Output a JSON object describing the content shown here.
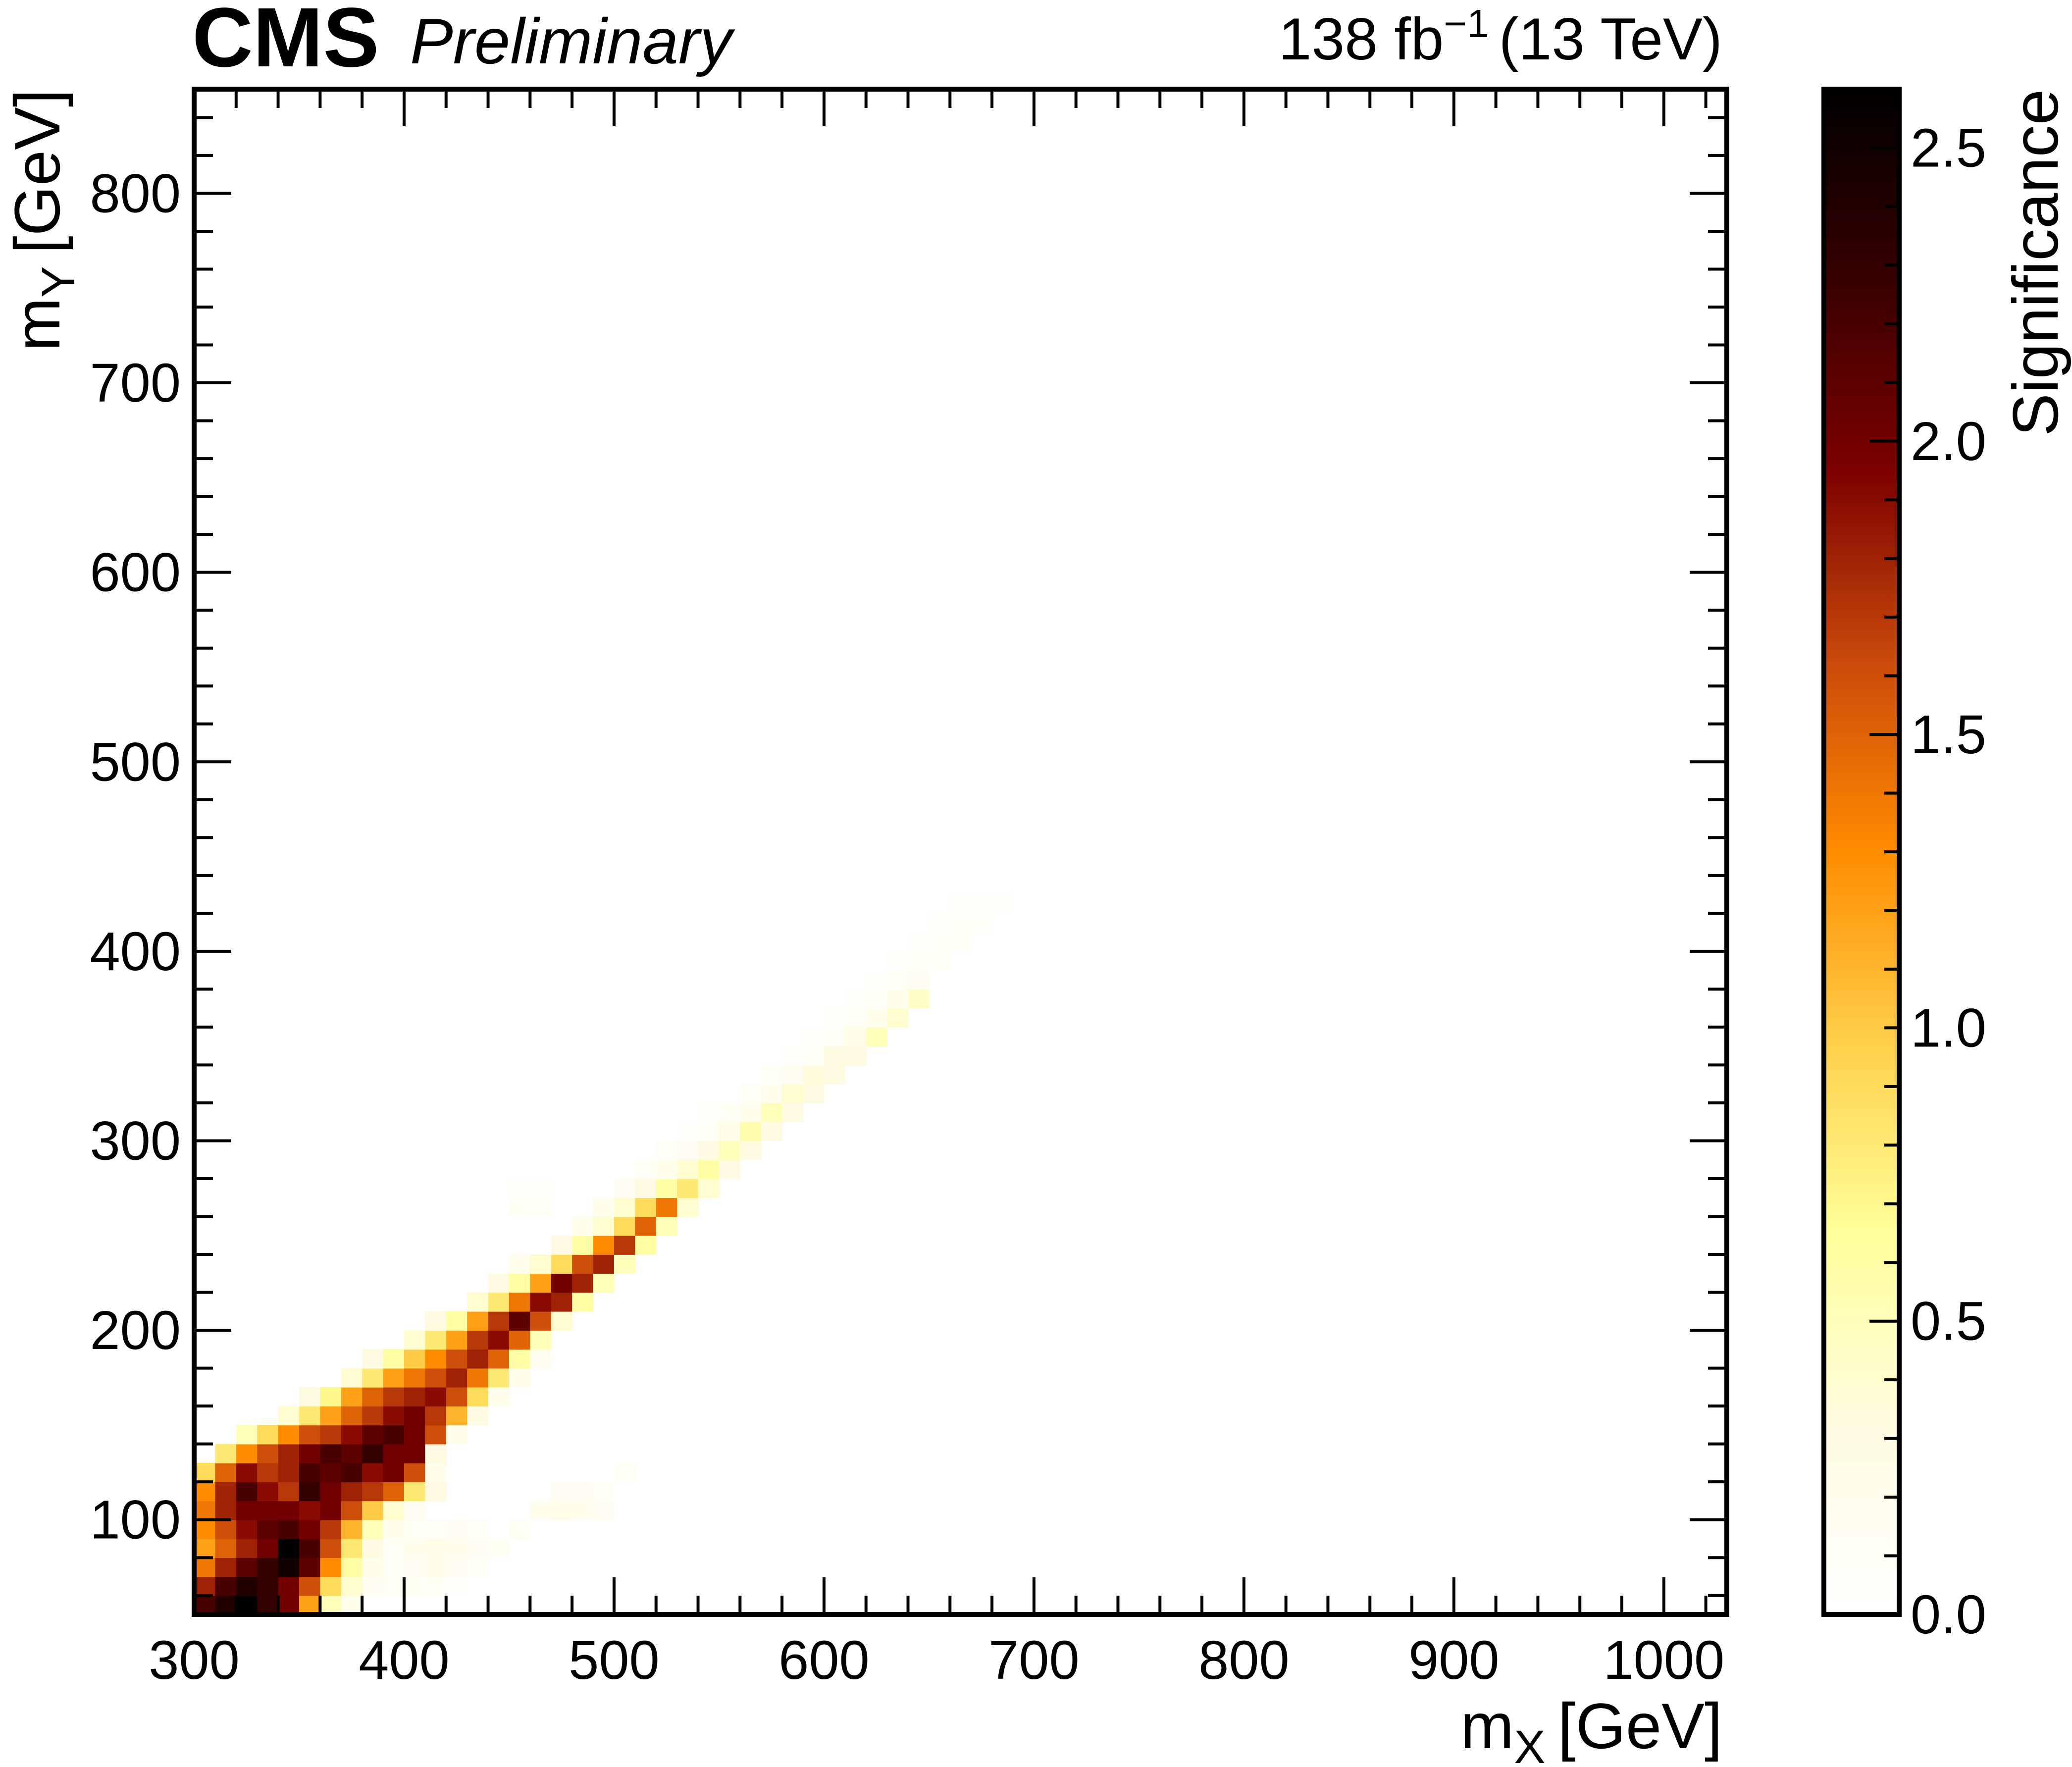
{
  "header": {
    "experiment": "CMS",
    "status": "Preliminary",
    "luminosity": "138 fb",
    "luminosity_exponent": "−1",
    "energy": "(13 TeV)"
  },
  "chart_data": {
    "type": "heatmap",
    "title": "",
    "xlabel": "m",
    "xlabel_sub": "X",
    "xlabel_unit": "[GeV]",
    "ylabel": "m",
    "ylabel_sub": "Y",
    "ylabel_unit": "[GeV]",
    "xlim": [
      300,
      1030
    ],
    "ylim": [
      50,
      855
    ],
    "x_ticks": [
      "300",
      "400",
      "500",
      "600",
      "700",
      "800",
      "900",
      "1000"
    ],
    "y_ticks": [
      "100",
      "200",
      "300",
      "400",
      "500",
      "600",
      "700",
      "800"
    ],
    "colorbar": {
      "label": "Significance",
      "range": [
        0,
        2.6
      ],
      "ticks": [
        "0.0",
        "0.5",
        "1.0",
        "1.5",
        "2.0",
        "2.5"
      ],
      "colors": [
        "#ffffff",
        "#fffbe0",
        "#ffff99",
        "#ffd04a",
        "#ff8c00",
        "#c94a0a",
        "#7d0000",
        "#380000",
        "#000000"
      ]
    },
    "cells_description_units": "each cell: [mX center GeV, mY center GeV, significance]",
    "cells": [
      [
        305,
        55,
        2.2
      ],
      [
        315,
        55,
        2.4
      ],
      [
        325,
        55,
        2.6
      ],
      [
        335,
        55,
        2.3
      ],
      [
        345,
        55,
        2.0
      ],
      [
        355,
        55,
        1.2
      ],
      [
        365,
        55,
        0.5
      ],
      [
        375,
        55,
        0.2
      ],
      [
        305,
        65,
        1.8
      ],
      [
        315,
        65,
        2.2
      ],
      [
        325,
        65,
        2.4
      ],
      [
        335,
        65,
        2.3
      ],
      [
        345,
        65,
        2.0
      ],
      [
        355,
        65,
        1.6
      ],
      [
        365,
        65,
        0.9
      ],
      [
        375,
        65,
        0.4
      ],
      [
        385,
        65,
        0.15
      ],
      [
        395,
        65,
        0.1
      ],
      [
        405,
        65,
        0.1
      ],
      [
        415,
        65,
        0.1
      ],
      [
        425,
        65,
        0.05
      ],
      [
        305,
        75,
        1.4
      ],
      [
        315,
        75,
        1.8
      ],
      [
        325,
        75,
        2.1
      ],
      [
        335,
        75,
        2.3
      ],
      [
        345,
        75,
        2.5
      ],
      [
        355,
        75,
        2.1
      ],
      [
        365,
        75,
        1.3
      ],
      [
        375,
        75,
        0.6
      ],
      [
        385,
        75,
        0.2
      ],
      [
        395,
        75,
        0.1
      ],
      [
        405,
        75,
        0.15
      ],
      [
        415,
        75,
        0.2
      ],
      [
        425,
        75,
        0.15
      ],
      [
        435,
        75,
        0.1
      ],
      [
        305,
        85,
        1.2
      ],
      [
        315,
        85,
        1.5
      ],
      [
        325,
        85,
        1.8
      ],
      [
        335,
        85,
        2.0
      ],
      [
        345,
        85,
        2.6
      ],
      [
        355,
        85,
        2.2
      ],
      [
        365,
        85,
        1.6
      ],
      [
        375,
        85,
        0.8
      ],
      [
        385,
        85,
        0.3
      ],
      [
        395,
        85,
        0.1
      ],
      [
        405,
        85,
        0.2
      ],
      [
        415,
        85,
        0.25
      ],
      [
        425,
        85,
        0.2
      ],
      [
        435,
        85,
        0.15
      ],
      [
        445,
        85,
        0.1
      ],
      [
        305,
        95,
        1.3
      ],
      [
        315,
        95,
        1.6
      ],
      [
        325,
        95,
        1.9
      ],
      [
        335,
        95,
        2.1
      ],
      [
        345,
        95,
        2.2
      ],
      [
        355,
        95,
        2.0
      ],
      [
        365,
        95,
        1.7
      ],
      [
        375,
        95,
        1.1
      ],
      [
        385,
        95,
        0.5
      ],
      [
        395,
        95,
        0.2
      ],
      [
        405,
        95,
        0.1
      ],
      [
        415,
        95,
        0.1
      ],
      [
        425,
        95,
        0.15
      ],
      [
        435,
        95,
        0.1
      ],
      [
        455,
        95,
        0.1
      ],
      [
        305,
        105,
        1.4
      ],
      [
        315,
        105,
        1.8
      ],
      [
        325,
        105,
        2.0
      ],
      [
        335,
        105,
        2.0
      ],
      [
        345,
        105,
        2.0
      ],
      [
        355,
        105,
        1.9
      ],
      [
        365,
        105,
        2.0
      ],
      [
        375,
        105,
        1.6
      ],
      [
        385,
        105,
        1.0
      ],
      [
        395,
        105,
        0.4
      ],
      [
        405,
        105,
        0.15
      ],
      [
        465,
        105,
        0.2
      ],
      [
        475,
        105,
        0.25
      ],
      [
        485,
        105,
        0.2
      ],
      [
        495,
        105,
        0.15
      ],
      [
        305,
        115,
        1.3
      ],
      [
        315,
        115,
        1.8
      ],
      [
        325,
        115,
        2.2
      ],
      [
        335,
        115,
        1.9
      ],
      [
        345,
        115,
        1.7
      ],
      [
        355,
        115,
        2.3
      ],
      [
        365,
        115,
        2.0
      ],
      [
        375,
        115,
        1.8
      ],
      [
        385,
        115,
        1.7
      ],
      [
        395,
        115,
        1.5
      ],
      [
        405,
        115,
        0.8
      ],
      [
        415,
        115,
        0.3
      ],
      [
        475,
        115,
        0.15
      ],
      [
        485,
        115,
        0.15
      ],
      [
        495,
        115,
        0.1
      ],
      [
        305,
        125,
        0.9
      ],
      [
        315,
        125,
        1.5
      ],
      [
        325,
        125,
        1.9
      ],
      [
        335,
        125,
        1.7
      ],
      [
        345,
        125,
        1.8
      ],
      [
        355,
        125,
        2.2
      ],
      [
        365,
        125,
        2.1
      ],
      [
        375,
        125,
        2.2
      ],
      [
        385,
        125,
        1.9
      ],
      [
        395,
        125,
        2.0
      ],
      [
        405,
        125,
        1.6
      ],
      [
        415,
        125,
        0.2
      ],
      [
        505,
        125,
        0.1
      ],
      [
        315,
        135,
        0.8
      ],
      [
        325,
        135,
        1.3
      ],
      [
        335,
        135,
        1.6
      ],
      [
        345,
        135,
        1.8
      ],
      [
        355,
        135,
        2.0
      ],
      [
        365,
        135,
        2.2
      ],
      [
        375,
        135,
        2.1
      ],
      [
        385,
        135,
        2.3
      ],
      [
        395,
        135,
        2.0
      ],
      [
        405,
        135,
        2.0
      ],
      [
        415,
        135,
        0.3
      ],
      [
        325,
        145,
        0.5
      ],
      [
        335,
        145,
        0.9
      ],
      [
        345,
        145,
        1.3
      ],
      [
        355,
        145,
        1.6
      ],
      [
        365,
        145,
        1.7
      ],
      [
        375,
        145,
        1.9
      ],
      [
        385,
        145,
        2.1
      ],
      [
        395,
        145,
        2.2
      ],
      [
        405,
        145,
        2.0
      ],
      [
        415,
        145,
        1.6
      ],
      [
        425,
        145,
        0.2
      ],
      [
        345,
        155,
        0.4
      ],
      [
        355,
        155,
        0.8
      ],
      [
        365,
        155,
        1.2
      ],
      [
        375,
        155,
        1.5
      ],
      [
        385,
        155,
        1.7
      ],
      [
        395,
        155,
        1.9
      ],
      [
        405,
        155,
        2.0
      ],
      [
        415,
        155,
        1.7
      ],
      [
        425,
        155,
        1.1
      ],
      [
        435,
        155,
        0.3
      ],
      [
        355,
        165,
        0.3
      ],
      [
        365,
        165,
        0.7
      ],
      [
        375,
        165,
        1.2
      ],
      [
        385,
        165,
        1.5
      ],
      [
        395,
        165,
        1.7
      ],
      [
        405,
        165,
        1.8
      ],
      [
        415,
        165,
        1.9
      ],
      [
        425,
        165,
        1.6
      ],
      [
        435,
        165,
        0.9
      ],
      [
        445,
        165,
        0.2
      ],
      [
        375,
        175,
        0.4
      ],
      [
        385,
        175,
        0.8
      ],
      [
        395,
        175,
        1.2
      ],
      [
        405,
        175,
        1.4
      ],
      [
        415,
        175,
        1.6
      ],
      [
        425,
        175,
        1.8
      ],
      [
        435,
        175,
        1.4
      ],
      [
        445,
        175,
        0.8
      ],
      [
        455,
        175,
        0.2
      ],
      [
        385,
        185,
        0.3
      ],
      [
        395,
        185,
        0.6
      ],
      [
        405,
        185,
        1.0
      ],
      [
        415,
        185,
        1.3
      ],
      [
        425,
        185,
        1.6
      ],
      [
        435,
        185,
        1.8
      ],
      [
        445,
        185,
        1.5
      ],
      [
        455,
        185,
        0.6
      ],
      [
        465,
        185,
        0.15
      ],
      [
        405,
        195,
        0.4
      ],
      [
        415,
        195,
        0.8
      ],
      [
        425,
        195,
        1.2
      ],
      [
        435,
        195,
        1.7
      ],
      [
        445,
        195,
        1.9
      ],
      [
        455,
        195,
        1.5
      ],
      [
        465,
        195,
        0.5
      ],
      [
        415,
        205,
        0.3
      ],
      [
        425,
        205,
        0.6
      ],
      [
        435,
        205,
        1.2
      ],
      [
        445,
        205,
        1.7
      ],
      [
        455,
        205,
        2.1
      ],
      [
        465,
        205,
        1.6
      ],
      [
        475,
        205,
        0.4
      ],
      [
        435,
        215,
        0.4
      ],
      [
        445,
        215,
        0.8
      ],
      [
        455,
        215,
        1.4
      ],
      [
        465,
        215,
        1.9
      ],
      [
        475,
        215,
        1.8
      ],
      [
        485,
        215,
        0.6
      ],
      [
        445,
        225,
        0.3
      ],
      [
        455,
        225,
        0.6
      ],
      [
        465,
        225,
        1.2
      ],
      [
        475,
        225,
        2.0
      ],
      [
        485,
        225,
        1.8
      ],
      [
        495,
        225,
        0.5
      ],
      [
        455,
        235,
        0.2
      ],
      [
        465,
        235,
        0.4
      ],
      [
        475,
        235,
        0.9
      ],
      [
        485,
        235,
        1.6
      ],
      [
        495,
        235,
        1.8
      ],
      [
        505,
        235,
        0.5
      ],
      [
        475,
        245,
        0.3
      ],
      [
        485,
        245,
        0.6
      ],
      [
        495,
        245,
        1.3
      ],
      [
        505,
        245,
        1.7
      ],
      [
        515,
        245,
        0.6
      ],
      [
        485,
        255,
        0.2
      ],
      [
        495,
        255,
        0.4
      ],
      [
        505,
        255,
        0.9
      ],
      [
        515,
        255,
        1.5
      ],
      [
        525,
        255,
        0.5
      ],
      [
        455,
        265,
        0.1
      ],
      [
        465,
        265,
        0.1
      ],
      [
        495,
        265,
        0.2
      ],
      [
        505,
        265,
        0.4
      ],
      [
        515,
        265,
        0.9
      ],
      [
        525,
        265,
        1.4
      ],
      [
        535,
        265,
        0.4
      ],
      [
        455,
        275,
        0.05
      ],
      [
        465,
        275,
        0.05
      ],
      [
        505,
        275,
        0.15
      ],
      [
        515,
        275,
        0.3
      ],
      [
        525,
        275,
        0.6
      ],
      [
        535,
        275,
        0.8
      ],
      [
        545,
        275,
        0.4
      ],
      [
        515,
        285,
        0.1
      ],
      [
        525,
        285,
        0.2
      ],
      [
        535,
        285,
        0.4
      ],
      [
        545,
        285,
        0.6
      ],
      [
        555,
        285,
        0.3
      ],
      [
        525,
        295,
        0.1
      ],
      [
        535,
        295,
        0.15
      ],
      [
        545,
        295,
        0.3
      ],
      [
        555,
        295,
        0.5
      ],
      [
        565,
        295,
        0.3
      ],
      [
        535,
        305,
        0.05
      ],
      [
        545,
        305,
        0.1
      ],
      [
        555,
        305,
        0.25
      ],
      [
        565,
        305,
        0.55
      ],
      [
        575,
        305,
        0.3
      ],
      [
        545,
        315,
        0.05
      ],
      [
        555,
        315,
        0.1
      ],
      [
        565,
        315,
        0.2
      ],
      [
        575,
        315,
        0.5
      ],
      [
        585,
        315,
        0.3
      ],
      [
        565,
        325,
        0.1
      ],
      [
        575,
        325,
        0.2
      ],
      [
        585,
        325,
        0.4
      ],
      [
        595,
        325,
        0.3
      ],
      [
        575,
        335,
        0.1
      ],
      [
        585,
        335,
        0.15
      ],
      [
        595,
        335,
        0.35
      ],
      [
        605,
        335,
        0.3
      ],
      [
        585,
        345,
        0.05
      ],
      [
        595,
        345,
        0.1
      ],
      [
        605,
        345,
        0.3
      ],
      [
        615,
        345,
        0.3
      ],
      [
        595,
        355,
        0.05
      ],
      [
        605,
        355,
        0.1
      ],
      [
        615,
        355,
        0.25
      ],
      [
        625,
        355,
        0.5
      ],
      [
        605,
        365,
        0.05
      ],
      [
        615,
        365,
        0.1
      ],
      [
        625,
        365,
        0.2
      ],
      [
        635,
        365,
        0.4
      ],
      [
        615,
        375,
        0.05
      ],
      [
        625,
        375,
        0.1
      ],
      [
        635,
        375,
        0.2
      ],
      [
        645,
        375,
        0.45
      ],
      [
        625,
        385,
        0.05
      ],
      [
        635,
        385,
        0.1
      ],
      [
        645,
        385,
        0.15
      ],
      [
        635,
        395,
        0.05
      ],
      [
        645,
        395,
        0.08
      ],
      [
        655,
        395,
        0.1
      ],
      [
        645,
        405,
        0.05
      ],
      [
        655,
        405,
        0.08
      ],
      [
        665,
        405,
        0.1
      ],
      [
        655,
        415,
        0.05
      ],
      [
        665,
        415,
        0.08
      ],
      [
        675,
        415,
        0.08
      ],
      [
        665,
        425,
        0.05
      ],
      [
        675,
        425,
        0.05
      ],
      [
        685,
        425,
        0.05
      ]
    ]
  }
}
